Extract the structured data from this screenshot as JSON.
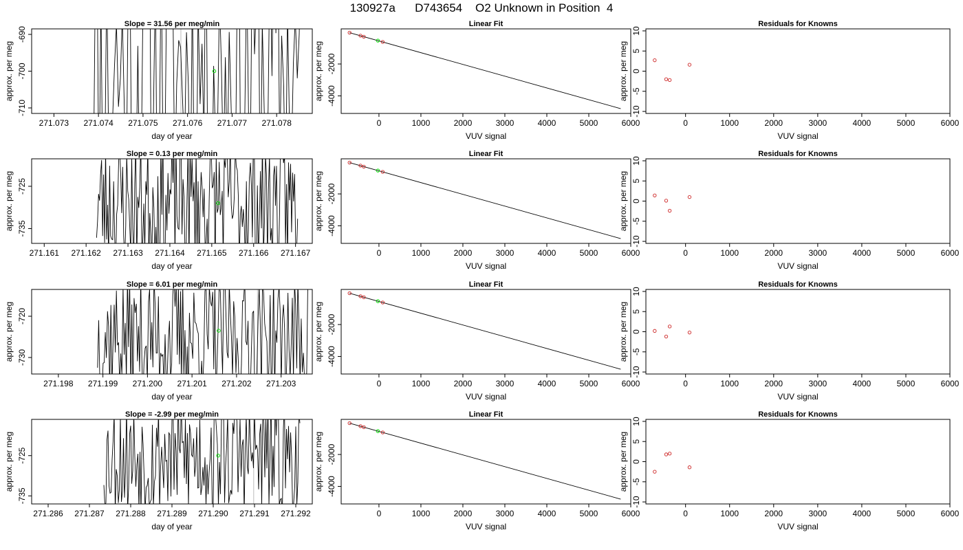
{
  "page": {
    "title_parts": [
      "130927a",
      "D743654",
      "O2 Unknown in Position  4"
    ]
  },
  "colors": {
    "trace": "#000000",
    "unknown_point": "#00dd00",
    "known_point": "#cc2222",
    "reference_line": "#bbbbbb"
  },
  "chart_data": [
    {
      "type": "line",
      "row": 1,
      "panel": "time-series",
      "title": "Slope =  31.56  per meg/min",
      "xlabel": "day of year",
      "ylabel": "approx. per meg",
      "xlim": [
        271.0725,
        271.0788
      ],
      "ylim": [
        -711.5,
        -688.5
      ],
      "xticks": [
        271.073,
        271.074,
        271.075,
        271.076,
        271.077,
        271.078
      ],
      "xtick_labels": [
        "271.073",
        "271.074",
        "271.075",
        "271.076",
        "271.077",
        "271.078"
      ],
      "yticks": [
        -710,
        -700,
        -690
      ],
      "ytick_labels": [
        "-710",
        "-700",
        "-690"
      ],
      "reference_lines_x": [
        271.07585
      ],
      "trace_x_range": [
        271.07375,
        271.07855
      ],
      "trace_segments": 110,
      "trace_seed": 11,
      "trace_amplitude": 45,
      "trace_center": -700,
      "unknown_point": {
        "x": 271.0766,
        "y": -700
      }
    },
    {
      "type": "line",
      "row": 1,
      "panel": "linear-fit",
      "title": "Linear Fit",
      "xlabel": "VUV signal",
      "ylabel": "approx. per meg",
      "xlim": [
        -900,
        6000
      ],
      "ylim": [
        -5100,
        200
      ],
      "xticks": [
        0,
        1000,
        2000,
        3000,
        4000,
        5000,
        6000
      ],
      "xtick_labels": [
        "0",
        "1000",
        "2000",
        "3000",
        "4000",
        "5000",
        "6000"
      ],
      "yticks": [
        -4000,
        -2000
      ],
      "ytick_labels": [
        "-4000",
        "-2000"
      ],
      "fit_line": {
        "x": [
          -700,
          5760
        ],
        "y": [
          -38,
          -4800
        ]
      },
      "known_points": [
        {
          "x": -700,
          "y": -38
        },
        {
          "x": -440,
          "y": -225
        },
        {
          "x": -360,
          "y": -290
        },
        {
          "x": 90,
          "y": -620
        }
      ],
      "unknown_point": {
        "x": -25,
        "y": -535
      }
    },
    {
      "type": "scatter",
      "row": 1,
      "panel": "residuals",
      "title": "Residuals for Knowns",
      "xlabel": "VUV signal",
      "ylabel": "approx. per meg",
      "xlim": [
        -900,
        6000
      ],
      "ylim": [
        -10.5,
        10.5
      ],
      "xticks": [
        0,
        1000,
        2000,
        3000,
        4000,
        5000,
        6000
      ],
      "xtick_labels": [
        "0",
        "1000",
        "2000",
        "3000",
        "4000",
        "5000",
        "6000"
      ],
      "yticks": [
        -10,
        -5,
        0,
        5,
        10
      ],
      "ytick_labels": [
        "-10",
        "-5",
        "0",
        "5",
        "10"
      ],
      "known_points": [
        {
          "x": -700,
          "y": 2.7
        },
        {
          "x": -440,
          "y": -2.0
        },
        {
          "x": -360,
          "y": -2.2
        },
        {
          "x": 90,
          "y": 1.6
        }
      ]
    },
    {
      "type": "line",
      "row": 2,
      "panel": "time-series",
      "title": "Slope =  0.13  per meg/min",
      "xlabel": "day of year",
      "ylabel": "approx. per meg",
      "xlim": [
        271.1607,
        271.1674
      ],
      "ylim": [
        -738.5,
        -718.5
      ],
      "xticks": [
        271.161,
        271.162,
        271.163,
        271.164,
        271.165,
        271.166,
        271.167
      ],
      "xtick_labels": [
        "271.161",
        "271.162",
        "271.163",
        "271.164",
        "271.165",
        "271.166",
        "271.167"
      ],
      "yticks": [
        -735,
        -725
      ],
      "ytick_labels": [
        "-735",
        "-725"
      ],
      "reference_lines_x": [
        271.16597
      ],
      "trace_x_range": [
        271.16225,
        271.16705
      ],
      "trace_segments": 200,
      "trace_seed": 23,
      "trace_amplitude": 16,
      "trace_center": -729,
      "unknown_point": {
        "x": 271.16515,
        "y": -729
      }
    },
    {
      "type": "line",
      "row": 2,
      "panel": "linear-fit",
      "title": "Linear Fit",
      "xlabel": "VUV signal",
      "ylabel": "approx. per meg",
      "xlim": [
        -900,
        6000
      ],
      "ylim": [
        -5100,
        200
      ],
      "xticks": [
        0,
        1000,
        2000,
        3000,
        4000,
        5000,
        6000
      ],
      "xtick_labels": [
        "0",
        "1000",
        "2000",
        "3000",
        "4000",
        "5000",
        "6000"
      ],
      "yticks": [
        -4000,
        -2000
      ],
      "ytick_labels": [
        "-4000",
        "-2000"
      ],
      "fit_line": {
        "x": [
          -700,
          5760
        ],
        "y": [
          -38,
          -4800
        ]
      },
      "known_points": [
        {
          "x": -700,
          "y": -38
        },
        {
          "x": -440,
          "y": -225
        },
        {
          "x": -360,
          "y": -290
        },
        {
          "x": 90,
          "y": -620
        }
      ],
      "unknown_point": {
        "x": -25,
        "y": -535
      }
    },
    {
      "type": "scatter",
      "row": 2,
      "panel": "residuals",
      "title": "Residuals for Knowns",
      "xlabel": "VUV signal",
      "ylabel": "approx. per meg",
      "xlim": [
        -900,
        6000
      ],
      "ylim": [
        -10.5,
        10.5
      ],
      "xticks": [
        0,
        1000,
        2000,
        3000,
        4000,
        5000,
        6000
      ],
      "xtick_labels": [
        "0",
        "1000",
        "2000",
        "3000",
        "4000",
        "5000",
        "6000"
      ],
      "yticks": [
        -10,
        -5,
        0,
        5,
        10
      ],
      "ytick_labels": [
        "-10",
        "-5",
        "0",
        "5",
        "10"
      ],
      "known_points": [
        {
          "x": -700,
          "y": 1.4
        },
        {
          "x": -440,
          "y": 0.1
        },
        {
          "x": -360,
          "y": -2.4
        },
        {
          "x": 90,
          "y": 1.0
        }
      ]
    },
    {
      "type": "line",
      "row": 3,
      "panel": "time-series",
      "title": "Slope =  6.01  per meg/min",
      "xlabel": "day of year",
      "ylabel": "approx. per meg",
      "xlim": [
        271.1974,
        271.2037
      ],
      "ylim": [
        -734,
        -713.5
      ],
      "xticks": [
        271.198,
        271.199,
        271.2,
        271.201,
        271.202,
        271.203
      ],
      "xtick_labels": [
        "271.198",
        "271.199",
        "271.200",
        "271.201",
        "271.202",
        "271.203"
      ],
      "yticks": [
        -730,
        -720
      ],
      "ytick_labels": [
        "-730",
        "-720"
      ],
      "reference_lines_x": [
        271.20075,
        271.20247
      ],
      "trace_x_range": [
        271.19888,
        271.2036
      ],
      "trace_segments": 190,
      "trace_seed": 37,
      "trace_amplitude": 15,
      "trace_center": -725,
      "unknown_point": {
        "x": 271.2016,
        "y": -723.5
      }
    },
    {
      "type": "line",
      "row": 3,
      "panel": "linear-fit",
      "title": "Linear Fit",
      "xlabel": "VUV signal",
      "ylabel": "approx. per meg",
      "xlim": [
        -900,
        6000
      ],
      "ylim": [
        -5100,
        200
      ],
      "xticks": [
        0,
        1000,
        2000,
        3000,
        4000,
        5000,
        6000
      ],
      "xtick_labels": [
        "0",
        "1000",
        "2000",
        "3000",
        "4000",
        "5000",
        "6000"
      ],
      "yticks": [
        -4000,
        -2000
      ],
      "ytick_labels": [
        "-4000",
        "-2000"
      ],
      "fit_line": {
        "x": [
          -700,
          5760
        ],
        "y": [
          -38,
          -4800
        ]
      },
      "known_points": [
        {
          "x": -700,
          "y": -38
        },
        {
          "x": -440,
          "y": -225
        },
        {
          "x": -360,
          "y": -290
        },
        {
          "x": 90,
          "y": -620
        }
      ],
      "unknown_point": {
        "x": -25,
        "y": -535
      }
    },
    {
      "type": "scatter",
      "row": 3,
      "panel": "residuals",
      "title": "Residuals for Knowns",
      "xlabel": "VUV signal",
      "ylabel": "approx. per meg",
      "xlim": [
        -900,
        6000
      ],
      "ylim": [
        -10.5,
        10.5
      ],
      "xticks": [
        0,
        1000,
        2000,
        3000,
        4000,
        5000,
        6000
      ],
      "xtick_labels": [
        "0",
        "1000",
        "2000",
        "3000",
        "4000",
        "5000",
        "6000"
      ],
      "yticks": [
        -10,
        -5,
        0,
        5,
        10
      ],
      "ytick_labels": [
        "-10",
        "-5",
        "0",
        "5",
        "10"
      ],
      "known_points": [
        {
          "x": -700,
          "y": 0.2
        },
        {
          "x": -440,
          "y": -1.2
        },
        {
          "x": -360,
          "y": 1.3
        },
        {
          "x": 90,
          "y": -0.2
        }
      ]
    },
    {
      "type": "line",
      "row": 4,
      "panel": "time-series",
      "title": "Slope =  -2.99  per meg/min",
      "xlabel": "day of year",
      "ylabel": "approx. per meg",
      "xlim": [
        271.2856,
        271.2924
      ],
      "ylim": [
        -737,
        -716
      ],
      "xticks": [
        271.286,
        271.287,
        271.288,
        271.289,
        271.29,
        271.291,
        271.292
      ],
      "xtick_labels": [
        "271.286",
        "271.287",
        "271.288",
        "271.289",
        "271.290",
        "271.291",
        "271.292"
      ],
      "yticks": [
        -735,
        -725
      ],
      "ytick_labels": [
        "-735",
        "-725"
      ],
      "reference_lines_x": [
        271.29098
      ],
      "trace_x_range": [
        271.28735,
        271.2921
      ],
      "trace_segments": 190,
      "trace_seed": 53,
      "trace_amplitude": 15,
      "trace_center": -725,
      "unknown_point": {
        "x": 271.29012,
        "y": -725
      }
    },
    {
      "type": "line",
      "row": 4,
      "panel": "linear-fit",
      "title": "Linear Fit",
      "xlabel": "VUV signal",
      "ylabel": "approx. per meg",
      "xlim": [
        -900,
        6000
      ],
      "ylim": [
        -5100,
        200
      ],
      "xticks": [
        0,
        1000,
        2000,
        3000,
        4000,
        5000,
        6000
      ],
      "xtick_labels": [
        "0",
        "1000",
        "2000",
        "3000",
        "4000",
        "5000",
        "6000"
      ],
      "yticks": [
        -4000,
        -2000
      ],
      "ytick_labels": [
        "-4000",
        "-2000"
      ],
      "fit_line": {
        "x": [
          -700,
          5760
        ],
        "y": [
          -38,
          -4800
        ]
      },
      "known_points": [
        {
          "x": -700,
          "y": -38
        },
        {
          "x": -440,
          "y": -225
        },
        {
          "x": -360,
          "y": -290
        },
        {
          "x": 90,
          "y": -620
        }
      ],
      "unknown_point": {
        "x": -25,
        "y": -535
      }
    },
    {
      "type": "scatter",
      "row": 4,
      "panel": "residuals",
      "title": "Residuals for Knowns",
      "xlabel": "VUV signal",
      "ylabel": "approx. per meg",
      "xlim": [
        -900,
        6000
      ],
      "ylim": [
        -10.5,
        10.5
      ],
      "xticks": [
        0,
        1000,
        2000,
        3000,
        4000,
        5000,
        6000
      ],
      "xtick_labels": [
        "0",
        "1000",
        "2000",
        "3000",
        "4000",
        "5000",
        "6000"
      ],
      "yticks": [
        -10,
        -5,
        0,
        5,
        10
      ],
      "ytick_labels": [
        "-10",
        "-5",
        "0",
        "5",
        "10"
      ],
      "known_points": [
        {
          "x": -700,
          "y": -2.5
        },
        {
          "x": -440,
          "y": 1.8
        },
        {
          "x": -360,
          "y": 2.0
        },
        {
          "x": 90,
          "y": -1.4
        }
      ]
    }
  ]
}
